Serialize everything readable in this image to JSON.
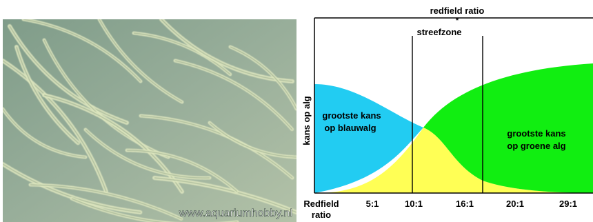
{
  "photo": {
    "watermark": "www.aquariumhobby.nl",
    "colors": {
      "background": "#8fa896",
      "filament": "#dfe8bf"
    }
  },
  "diagram": {
    "title": "redfield ratio",
    "zone_label": "streefzone",
    "ylabel": "kans op alg",
    "xlabel_line1": "Redfield",
    "xlabel_line2": "ratio",
    "ticks": [
      "5:1",
      "10:1",
      "16:1",
      "20:1",
      "29:1"
    ],
    "left_region": {
      "line1": "grootste kans",
      "line2": "op blauwalg",
      "color": "#22ccf2"
    },
    "right_region": {
      "line1": "grootste kans",
      "line2": "op groene alg",
      "color": "#11ee11"
    },
    "overlap_color": "#ffff55"
  }
}
